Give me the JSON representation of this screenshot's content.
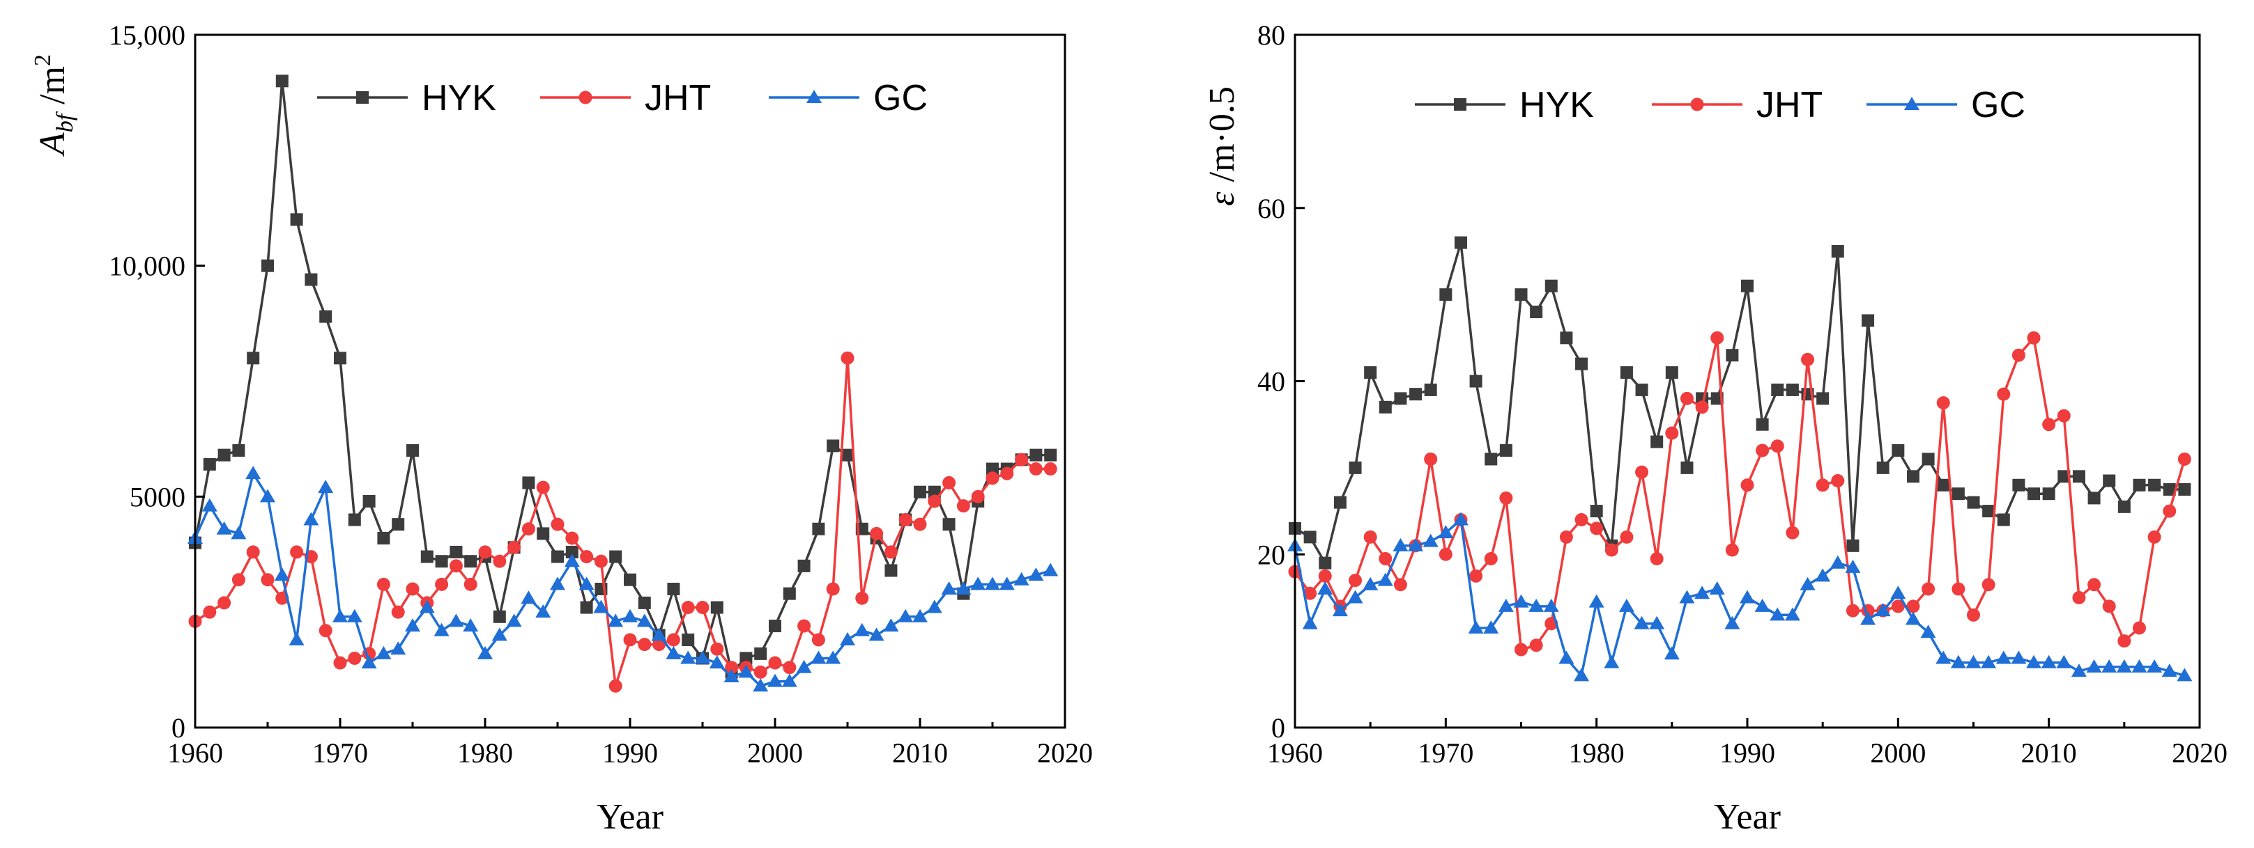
{
  "chart_data": [
    {
      "type": "line",
      "title": "",
      "xlabel": "Year",
      "ylabel_main": "A",
      "ylabel_sub": "bf",
      "ylabel_unit": "/m",
      "ylabel_sup": "2",
      "xlim": [
        1960,
        2020
      ],
      "ylim": [
        0,
        15000
      ],
      "xticks": [
        1960,
        1970,
        1980,
        1990,
        2000,
        2010,
        2020
      ],
      "yticks": [
        0,
        5000,
        10000,
        15000
      ],
      "ytick_labels": [
        "0",
        "5000",
        "10,000",
        "15,000"
      ],
      "legend": [
        "HYK",
        "JHT",
        "GC"
      ],
      "x": [
        1960,
        1961,
        1962,
        1963,
        1964,
        1965,
        1966,
        1967,
        1968,
        1969,
        1970,
        1971,
        1972,
        1973,
        1974,
        1975,
        1976,
        1977,
        1978,
        1979,
        1980,
        1981,
        1982,
        1983,
        1984,
        1985,
        1986,
        1987,
        1988,
        1989,
        1990,
        1991,
        1992,
        1993,
        1994,
        1995,
        1996,
        1997,
        1998,
        1999,
        2000,
        2001,
        2002,
        2003,
        2004,
        2005,
        2006,
        2007,
        2008,
        2009,
        2010,
        2011,
        2012,
        2013,
        2014,
        2015,
        2016,
        2017,
        2018,
        2019
      ],
      "series": [
        {
          "name": "HYK",
          "color": "#3c3c3c",
          "marker": "square",
          "values": [
            4000,
            5700,
            5900,
            6000,
            8000,
            10000,
            14000,
            11000,
            9700,
            8900,
            8000,
            4500,
            4900,
            4100,
            4400,
            6000,
            3700,
            3600,
            3800,
            3600,
            3700,
            2400,
            3900,
            5300,
            4200,
            3700,
            3800,
            2600,
            3000,
            3700,
            3200,
            2700,
            2000,
            3000,
            1900,
            1500,
            2600,
            1200,
            1500,
            1600,
            2200,
            2900,
            3500,
            4300,
            6100,
            5900,
            4300,
            4100,
            3400,
            4500,
            5100,
            5100,
            4400,
            2900,
            4900,
            5600,
            5600,
            5800,
            5900,
            5900
          ]
        },
        {
          "name": "JHT",
          "color": "#f03c3c",
          "marker": "circle",
          "values": [
            2300,
            2500,
            2700,
            3200,
            3800,
            3200,
            2800,
            3800,
            3700,
            2100,
            1400,
            1500,
            1600,
            3100,
            2500,
            3000,
            2700,
            3100,
            3500,
            3100,
            3800,
            3600,
            3900,
            4300,
            5200,
            4400,
            4100,
            3700,
            3600,
            900,
            1900,
            1800,
            1800,
            1900,
            2600,
            2600,
            1700,
            1300,
            1300,
            1200,
            1400,
            1300,
            2200,
            1900,
            3000,
            8000,
            2800,
            4200,
            3800,
            4500,
            4400,
            4900,
            5300,
            4800,
            5000,
            5400,
            5500,
            5800,
            5600,
            5600
          ]
        },
        {
          "name": "GC",
          "color": "#1f6fd6",
          "marker": "triangle",
          "values": [
            4100,
            4800,
            4300,
            4200,
            5500,
            5000,
            3300,
            1900,
            4500,
            5200,
            2400,
            2400,
            1400,
            1600,
            1700,
            2200,
            2600,
            2100,
            2300,
            2200,
            1600,
            2000,
            2300,
            2800,
            2500,
            3100,
            3600,
            3100,
            2600,
            2300,
            2400,
            2300,
            2000,
            1600,
            1500,
            1500,
            1400,
            1100,
            1200,
            900,
            1000,
            1000,
            1300,
            1500,
            1500,
            1900,
            2100,
            2000,
            2200,
            2400,
            2400,
            2600,
            3000,
            3000,
            3100,
            3100,
            3100,
            3200,
            3300,
            3400
          ]
        }
      ]
    },
    {
      "type": "line",
      "title": "",
      "xlabel": "Year",
      "ylabel_main": "ε",
      "ylabel_unit": "/m·0.5",
      "xlim": [
        1960,
        2020
      ],
      "ylim": [
        0,
        80
      ],
      "xticks": [
        1960,
        1970,
        1980,
        1990,
        2000,
        2010,
        2020
      ],
      "yticks": [
        0,
        20,
        40,
        60,
        80
      ],
      "ytick_labels": [
        "0",
        "20",
        "40",
        "60",
        "80"
      ],
      "legend": [
        "HYK",
        "JHT",
        "GC"
      ],
      "x": [
        1960,
        1961,
        1962,
        1963,
        1964,
        1965,
        1966,
        1967,
        1968,
        1969,
        1970,
        1971,
        1972,
        1973,
        1974,
        1975,
        1976,
        1977,
        1978,
        1979,
        1980,
        1981,
        1982,
        1983,
        1984,
        1985,
        1986,
        1987,
        1988,
        1989,
        1990,
        1991,
        1992,
        1993,
        1994,
        1995,
        1996,
        1997,
        1998,
        1999,
        2000,
        2001,
        2002,
        2003,
        2004,
        2005,
        2006,
        2007,
        2008,
        2009,
        2010,
        2011,
        2012,
        2013,
        2014,
        2015,
        2016,
        2017,
        2018,
        2019
      ],
      "series": [
        {
          "name": "HYK",
          "color": "#3c3c3c",
          "marker": "square",
          "values": [
            23,
            22,
            19,
            26,
            30,
            41,
            37,
            38,
            38.5,
            39,
            50,
            56,
            40,
            31,
            32,
            50,
            48,
            51,
            45,
            42,
            25,
            21,
            41,
            39,
            33,
            41,
            30,
            38,
            38,
            43,
            51,
            35,
            39,
            39,
            38.5,
            38,
            55,
            21,
            47,
            30,
            32,
            29,
            31,
            28,
            27,
            26,
            25,
            24,
            28,
            27,
            27,
            29,
            29,
            26.5,
            28.5,
            25.5,
            28,
            28,
            27.5,
            27.5
          ]
        },
        {
          "name": "JHT",
          "color": "#f03c3c",
          "marker": "circle",
          "values": [
            18,
            15.5,
            17.5,
            14,
            17,
            22,
            19.5,
            16.5,
            21,
            31,
            20,
            24,
            17.5,
            19.5,
            26.5,
            9,
            9.5,
            12,
            22,
            24,
            23,
            20.5,
            22,
            29.5,
            19.5,
            34,
            38,
            37,
            45,
            20.5,
            28,
            32,
            32.5,
            22.5,
            42.5,
            28,
            28.5,
            13.5,
            13.5,
            13.5,
            14,
            14,
            16,
            37.5,
            16,
            13,
            16.5,
            38.5,
            43,
            45,
            35,
            36,
            15,
            16.5,
            14,
            10,
            11.5,
            22,
            25,
            31
          ]
        },
        {
          "name": "GC",
          "color": "#1f6fd6",
          "marker": "triangle",
          "values": [
            21,
            12,
            16,
            13.5,
            15,
            16.5,
            17,
            21,
            21,
            21.5,
            22.5,
            24,
            11.5,
            11.5,
            14,
            14.5,
            14,
            14,
            8,
            6,
            14.5,
            7.5,
            14,
            12,
            12,
            8.5,
            15,
            15.5,
            16,
            12,
            15,
            14,
            13,
            13,
            16.5,
            17.5,
            19,
            18.5,
            12.5,
            13.5,
            15.5,
            12.5,
            11,
            8,
            7.5,
            7.5,
            7.5,
            8,
            8,
            7.5,
            7.5,
            7.5,
            6.5,
            7,
            7,
            7,
            7,
            7,
            6.5,
            6
          ]
        }
      ]
    }
  ]
}
